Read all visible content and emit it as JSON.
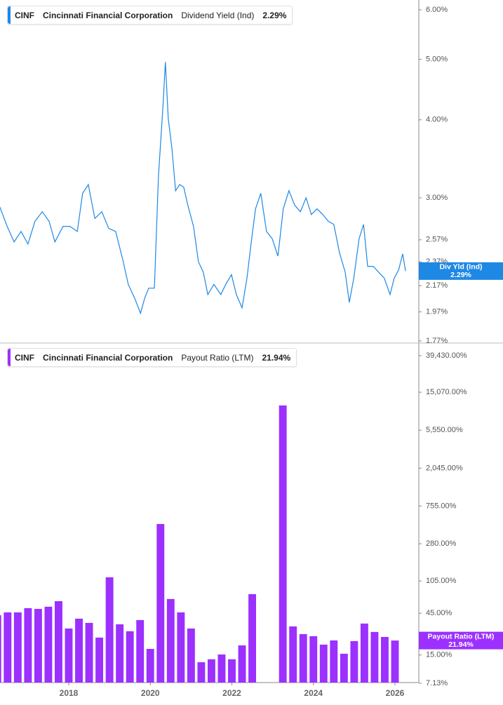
{
  "chart_data": [
    {
      "type": "line",
      "ticker": "CINF",
      "company": "Cincinnati Financial Corporation",
      "log_scale": true,
      "current": {
        "value": 2.29,
        "label": "2.29%"
      },
      "axis_tag": "Div Yld (Ind)",
      "x": [
        2016.31,
        2016.49,
        2016.66,
        2016.83,
        2017.0,
        2017.17,
        2017.35,
        2017.52,
        2017.66,
        2017.86,
        2018.03,
        2018.21,
        2018.34,
        2018.48,
        2018.64,
        2018.81,
        2018.98,
        2019.15,
        2019.33,
        2019.46,
        2019.62,
        2019.76,
        2019.86,
        2019.96,
        2020.1,
        2020.2,
        2020.31,
        2020.37,
        2020.44,
        2020.53,
        2020.62,
        2020.72,
        2020.82,
        2020.92,
        2021.06,
        2021.18,
        2021.3,
        2021.41,
        2021.56,
        2021.73,
        2021.85,
        2021.99,
        2022.11,
        2022.25,
        2022.37,
        2022.47,
        2022.58,
        2022.71,
        2022.85,
        2022.99,
        2023.13,
        2023.26,
        2023.4,
        2023.54,
        2023.68,
        2023.82,
        2023.95,
        2024.09,
        2024.23,
        2024.37,
        2024.5,
        2024.64,
        2024.78,
        2024.88,
        2024.99,
        2025.12,
        2025.23,
        2025.33,
        2025.47,
        2025.6,
        2025.74,
        2025.88,
        2025.98,
        2026.09,
        2026.19,
        2026.26
      ],
      "series": [
        {
          "name": "Dividend Yield (Ind)",
          "color": "#1e88e5",
          "values": [
            2.9,
            2.7,
            2.55,
            2.65,
            2.53,
            2.75,
            2.85,
            2.75,
            2.55,
            2.7,
            2.7,
            2.65,
            3.05,
            3.15,
            2.78,
            2.85,
            2.68,
            2.65,
            2.38,
            2.18,
            2.07,
            1.96,
            2.07,
            2.15,
            2.15,
            3.25,
            4.2,
            4.95,
            4.02,
            3.6,
            3.08,
            3.15,
            3.12,
            2.92,
            2.7,
            2.37,
            2.28,
            2.1,
            2.18,
            2.1,
            2.18,
            2.26,
            2.1,
            2.0,
            2.23,
            2.53,
            2.88,
            3.05,
            2.65,
            2.58,
            2.42,
            2.88,
            3.08,
            2.92,
            2.85,
            3.0,
            2.82,
            2.88,
            2.82,
            2.75,
            2.72,
            2.45,
            2.28,
            2.04,
            2.23,
            2.58,
            2.72,
            2.33,
            2.33,
            2.28,
            2.23,
            2.1,
            2.23,
            2.3,
            2.44,
            2.29
          ]
        }
      ],
      "xlim": [
        2016.314,
        2026.585
      ],
      "ylim": [
        1.77,
        6.0
      ],
      "yticks": [
        {
          "value": 6.0,
          "label": "6.00%"
        },
        {
          "value": 5.0,
          "label": "5.00%"
        },
        {
          "value": 4.0,
          "label": "4.00%"
        },
        {
          "value": 3.0,
          "label": "3.00%"
        },
        {
          "value": 2.57,
          "label": "2.57%"
        },
        {
          "value": 2.37,
          "label": "2.37%"
        },
        {
          "value": 2.17,
          "label": "2.17%"
        },
        {
          "value": 1.97,
          "label": "1.97%"
        },
        {
          "value": 1.77,
          "label": "1.77%"
        }
      ]
    },
    {
      "type": "bar",
      "ticker": "CINF",
      "company": "Cincinnati Financial Corporation",
      "log_scale": true,
      "current": {
        "value": 21.94,
        "label": "21.94%"
      },
      "axis_tag": "Payout Ratio (LTM)",
      "x": [
        2016.25,
        2016.5,
        2016.75,
        2017.0,
        2017.25,
        2017.5,
        2017.75,
        2018.0,
        2018.25,
        2018.5,
        2018.75,
        2019.0,
        2019.25,
        2019.5,
        2019.75,
        2020.0,
        2020.25,
        2020.5,
        2020.75,
        2021.0,
        2021.25,
        2021.5,
        2021.75,
        2022.0,
        2022.25,
        2022.5,
        2022.75,
        2023.0,
        2023.25,
        2023.5,
        2023.75,
        2024.0,
        2024.25,
        2024.5,
        2024.75,
        2025.0,
        2025.25,
        2025.5,
        2025.75,
        2026.0
      ],
      "series": [
        {
          "name": "Payout Ratio (LTM)",
          "color": "#9b30ff",
          "values": [
            42.7,
            46.0,
            46.0,
            51.4,
            50.4,
            53.4,
            61.8,
            30.1,
            39.0,
            34.9,
            23.7,
            115.8,
            33.6,
            28.0,
            37.6,
            17.6,
            470.6,
            65.4,
            46.0,
            30.1,
            12.4,
            13.4,
            15.2,
            13.4,
            19.3,
            74.4,
            null,
            null,
            10640,
            31.8,
            26.0,
            24.6,
            19.7,
            22.0,
            15.5,
            21.6,
            34.3,
            27.5,
            24.1,
            21.94
          ]
        }
      ],
      "xlim": [
        2016.314,
        2026.585
      ],
      "ylim": [
        7.13,
        39430
      ],
      "xticks": [
        2018,
        2020,
        2022,
        2024,
        2026
      ],
      "yticks": [
        {
          "value": 39430,
          "label": "39,430.00%"
        },
        {
          "value": 15070,
          "label": "15,070.00%"
        },
        {
          "value": 5550,
          "label": "5,550.00%"
        },
        {
          "value": 2045,
          "label": "2,045.00%"
        },
        {
          "value": 755,
          "label": "755.00%"
        },
        {
          "value": 280,
          "label": "280.00%"
        },
        {
          "value": 105,
          "label": "105.00%"
        },
        {
          "value": 45,
          "label": "45.00%"
        },
        {
          "value": 15,
          "label": "15.00%"
        },
        {
          "value": 7.13,
          "label": "7.13%"
        }
      ]
    }
  ]
}
